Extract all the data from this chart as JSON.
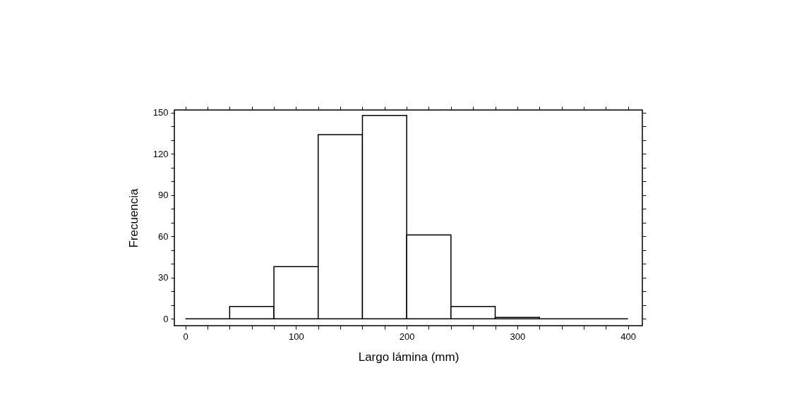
{
  "chart_data": {
    "type": "histogram",
    "xlabel": "Largo lámina (mm)",
    "ylabel": "Frecuencia",
    "bins": [
      0,
      40,
      80,
      120,
      160,
      200,
      240,
      280,
      320,
      360,
      400
    ],
    "values": [
      0,
      9,
      38,
      134,
      148,
      61,
      9,
      1,
      0,
      0
    ],
    "xlim": [
      -10,
      413
    ],
    "ylim": [
      -5,
      152
    ],
    "xticks": [
      0,
      {
        "value": 20,
        "label": null
      },
      100,
      {
        "value": 40,
        "label": null
      },
      {
        "value": 60,
        "label": null
      },
      {
        "value": 80,
        "label": null
      },
      {
        "value": 120,
        "label": null
      },
      {
        "value": 140,
        "label": null
      },
      {
        "value": 160,
        "label": null
      },
      {
        "value": 180,
        "label": null
      },
      200,
      {
        "value": 220,
        "label": null
      },
      {
        "value": 240,
        "label": null
      },
      {
        "value": 260,
        "label": null
      },
      {
        "value": 280,
        "label": null
      },
      300,
      {
        "value": 320,
        "label": null
      },
      {
        "value": 340,
        "label": null
      },
      {
        "value": 360,
        "label": null
      },
      {
        "value": 380,
        "label": null
      },
      400
    ],
    "yticks": [
      0,
      {
        "value": 10,
        "label": null
      },
      {
        "value": 20,
        "label": null
      },
      30,
      {
        "value": 40,
        "label": null
      },
      {
        "value": 50,
        "label": null
      },
      60,
      {
        "value": 70,
        "label": null
      },
      {
        "value": 80,
        "label": null
      },
      90,
      {
        "value": 100,
        "label": null
      },
      {
        "value": 110,
        "label": null
      },
      120,
      {
        "value": 130,
        "label": null
      },
      {
        "value": 140,
        "label": null
      },
      150
    ],
    "grid": false
  }
}
